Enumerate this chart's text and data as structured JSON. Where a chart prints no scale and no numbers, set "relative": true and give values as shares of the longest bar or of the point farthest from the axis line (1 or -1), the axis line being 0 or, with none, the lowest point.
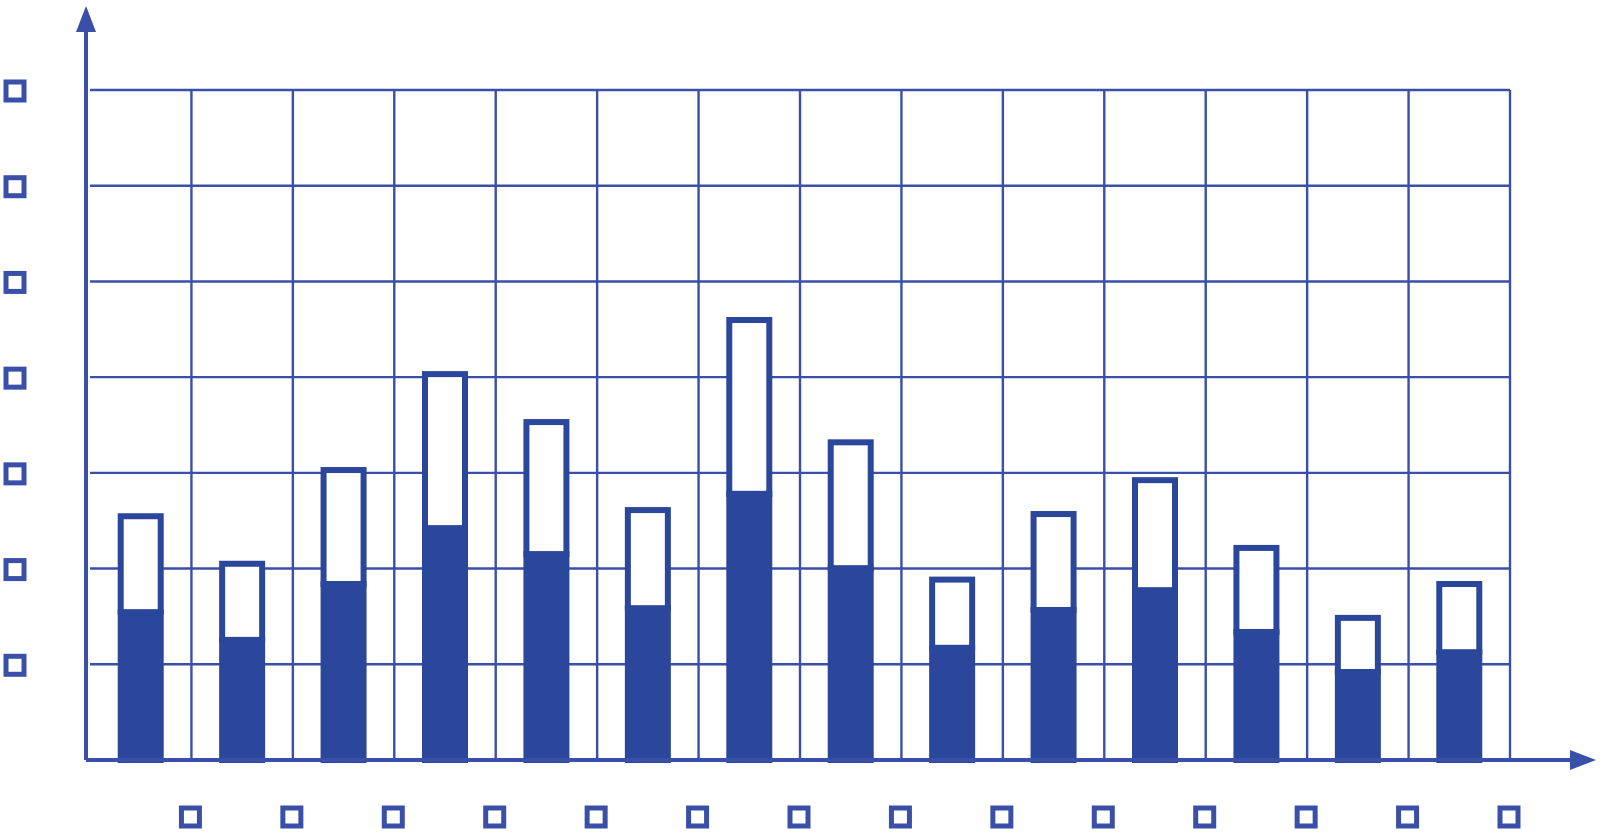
{
  "chart_data": {
    "type": "bar",
    "relative": true,
    "stacked": true,
    "grid": true,
    "categories": [
      null,
      null,
      null,
      null,
      null,
      null,
      null,
      null,
      null,
      null,
      null,
      null,
      null,
      null
    ],
    "series": [
      {
        "color": "#2b479c",
        "values": [
          0.336,
          0.273,
          0.4,
          0.527,
          0.468,
          0.345,
          0.605,
          0.436,
          0.255,
          0.341,
          0.386,
          0.291,
          0.2,
          0.245
        ]
      },
      {
        "color": "#2b479c",
        "values": [
          0.218,
          0.173,
          0.259,
          0.35,
          0.3,
          0.223,
          0.395,
          0.286,
          0.155,
          0.218,
          0.25,
          0.191,
          0.123,
          0.155
        ]
      }
    ]
  }
}
